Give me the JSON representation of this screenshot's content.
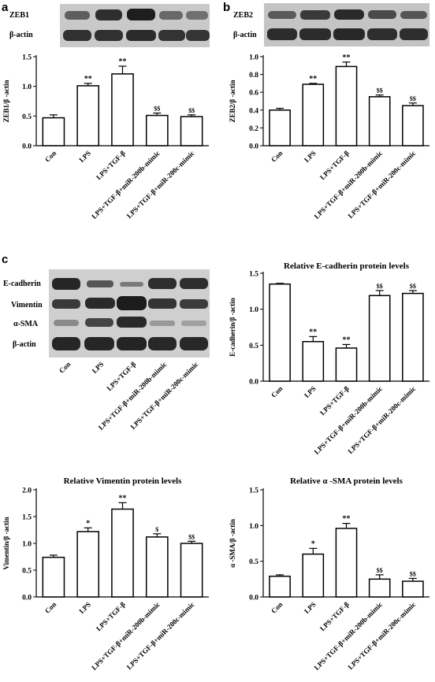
{
  "panel_letters": [
    "a",
    "b",
    "c"
  ],
  "blots": [
    {
      "panel": "a",
      "labels": [
        "ZEB1",
        "β-actin"
      ],
      "lanes": 5
    },
    {
      "panel": "b",
      "labels": [
        "ZEB2",
        "β-actin"
      ],
      "lanes": 5
    },
    {
      "panel": "c",
      "labels": [
        "E-cadherin",
        "Vimentin",
        "α-SMA",
        "β-actin"
      ],
      "lanes": 5,
      "categories": [
        "Con",
        "LPS",
        "LPS+TGF-β",
        "LPS+TGF-β+miR-200b-mimic",
        "LPS+TGF-β+miR-200c-mimic"
      ]
    }
  ],
  "chart_data": [
    {
      "id": "zeb1",
      "type": "bar",
      "title": "",
      "categories": [
        "Con",
        "LPS",
        "LPS+TGF-β",
        "LPS+TGF-β+miR-200b-mimic",
        "LPS+TGF-β+miR-200c-mimic"
      ],
      "values": [
        0.47,
        1.01,
        1.21,
        0.51,
        0.49
      ],
      "errors": [
        0.05,
        0.04,
        0.13,
        0.04,
        0.03
      ],
      "significance": [
        "",
        "**",
        "**",
        "$$",
        "$$"
      ],
      "ylabel": "ZEB1/β -actin",
      "ylim": [
        0,
        1.5
      ],
      "yticks": [
        "0.0",
        "0.5",
        "1.0",
        "1.5"
      ]
    },
    {
      "id": "zeb2",
      "type": "bar",
      "title": "",
      "categories": [
        "Con",
        "LPS",
        "LPS+TGF-β",
        "LPS+TGF-β+miR-200b-mimic",
        "LPS+TGF-β+miR-200c-mimic"
      ],
      "values": [
        0.4,
        0.69,
        0.89,
        0.55,
        0.45
      ],
      "errors": [
        0.02,
        0.01,
        0.05,
        0.02,
        0.03
      ],
      "significance": [
        "",
        "**",
        "**",
        "$$",
        "$$"
      ],
      "ylabel": "ZEB2/β -actin",
      "ylim": [
        0,
        1.0
      ],
      "yticks": [
        "0.0",
        "0.2",
        "0.4",
        "0.6",
        "0.8",
        "1.0"
      ]
    },
    {
      "id": "ecad",
      "type": "bar",
      "title": "Relative E-cadherin protein levels",
      "categories": [
        "Con",
        "LPS",
        "LPS+TGF-β",
        "LPS+TGF-β+miR-200b-mimic",
        "LPS+TGF-β+miR-200c-mimic"
      ],
      "values": [
        1.35,
        0.55,
        0.46,
        1.19,
        1.22
      ],
      "errors": [
        0.01,
        0.07,
        0.05,
        0.07,
        0.04
      ],
      "significance": [
        "",
        "**",
        "**",
        "$$",
        "$$"
      ],
      "ylabel": "E-cadherin/β -actin",
      "ylim": [
        0,
        1.5
      ],
      "yticks": [
        "0.0",
        "0.5",
        "1.0",
        "1.5"
      ]
    },
    {
      "id": "vim",
      "type": "bar",
      "title": "Relative Vimentin protein levels",
      "categories": [
        "Con",
        "LPS",
        "LPS+TGF-β",
        "LPS+TGF-β+miR-200b-mimic",
        "LPS+TGF-β+miR-200c-mimic"
      ],
      "values": [
        0.74,
        1.22,
        1.64,
        1.12,
        1.0
      ],
      "errors": [
        0.04,
        0.07,
        0.12,
        0.06,
        0.04
      ],
      "significance": [
        "",
        "*",
        "**",
        "$",
        "$$"
      ],
      "ylabel": "Vimentin/β -actin",
      "ylim": [
        0,
        2.0
      ],
      "yticks": [
        "0.0",
        "0.5",
        "1.0",
        "1.5",
        "2.0"
      ]
    },
    {
      "id": "sma",
      "type": "bar",
      "title": "Relative α -SMA protein levels",
      "categories": [
        "Con",
        "LPS",
        "LPS+TGF-β",
        "LPS+TGF-β+miR-200b-mimic",
        "LPS+TGF-β+miR-200c-mimic"
      ],
      "values": [
        0.29,
        0.6,
        0.96,
        0.25,
        0.22
      ],
      "errors": [
        0.02,
        0.08,
        0.07,
        0.06,
        0.04
      ],
      "significance": [
        "",
        "*",
        "**",
        "$$",
        "$$"
      ],
      "ylabel": "α -SMA/β -actin",
      "ylim": [
        0,
        1.5
      ],
      "yticks": [
        "0.0",
        "0.5",
        "1.0",
        "1.5"
      ]
    }
  ]
}
